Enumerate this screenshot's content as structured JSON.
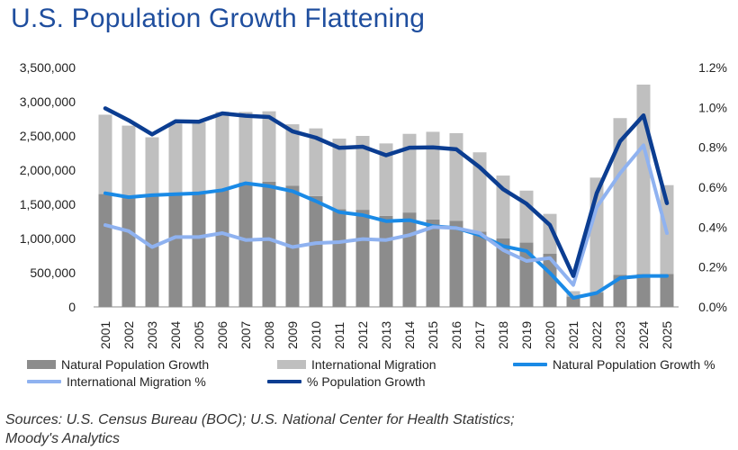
{
  "title": "U.S. Population Growth Flattening",
  "source_lines": [
    "Sources: U.S. Census Bureau (BOC); U.S. National Center for Health Statistics;",
    "Moody's Analytics"
  ],
  "legend": [
    {
      "label": "Natural Population Growth",
      "kind": "box",
      "color": "#8c8c8c"
    },
    {
      "label": "International Migration",
      "kind": "box",
      "color": "#bfbfbf"
    },
    {
      "label": "Natural Population Growth %",
      "kind": "line",
      "color": "#1a8ae6"
    },
    {
      "label": "International Migration %",
      "kind": "line",
      "color": "#8fb2f0"
    },
    {
      "label": "% Population Growth",
      "kind": "line",
      "color": "#0b3d91"
    }
  ],
  "chart_data": {
    "type": "bar",
    "stacked": true,
    "categories": [
      "2001",
      "2002",
      "2003",
      "2004",
      "2005",
      "2006",
      "2007",
      "2008",
      "2009",
      "2010",
      "2011",
      "2012",
      "2013",
      "2014",
      "2015",
      "2016",
      "2017",
      "2018",
      "2019",
      "2020",
      "2021",
      "2022",
      "2023",
      "2024",
      "2025"
    ],
    "left_axis": {
      "min": 0,
      "max": 3500000,
      "step": 500000,
      "tick_labels": [
        "0",
        "500,000",
        "1,000,000",
        "1,500,000",
        "2,000,000",
        "2,500,000",
        "3,000,000",
        "3,500,000"
      ]
    },
    "right_axis": {
      "min": 0,
      "max": 1.2,
      "step": 0.2,
      "tick_labels": [
        "0.0%",
        "0.2%",
        "0.4%",
        "0.6%",
        "0.8%",
        "1.0%",
        "1.2%"
      ]
    },
    "grid": false,
    "legend_position": "bottom",
    "bar_series": [
      {
        "name": "Natural Population Growth",
        "color": "#8c8c8c",
        "values": [
          1650000,
          1600000,
          1620000,
          1640000,
          1650000,
          1720000,
          1820000,
          1830000,
          1770000,
          1620000,
          1430000,
          1420000,
          1330000,
          1380000,
          1280000,
          1260000,
          1100000,
          1000000,
          940000,
          780000,
          150000,
          210000,
          470000,
          480000,
          480000
        ]
      },
      {
        "name": "International Migration",
        "color": "#bfbfbf",
        "values": [
          1160000,
          1050000,
          860000,
          1040000,
          1050000,
          1130000,
          1030000,
          1030000,
          900000,
          990000,
          1030000,
          1080000,
          1060000,
          1150000,
          1280000,
          1280000,
          1160000,
          920000,
          760000,
          580000,
          80000,
          1680000,
          2290000,
          2770000,
          1300000
        ]
      }
    ],
    "line_series": [
      {
        "name": "Natural Population Growth %",
        "color": "#1a8ae6",
        "axis": "right",
        "values": [
          0.57,
          0.55,
          0.56,
          0.565,
          0.57,
          0.585,
          0.62,
          0.605,
          0.58,
          0.53,
          0.475,
          0.46,
          0.43,
          0.435,
          0.405,
          0.395,
          0.36,
          0.305,
          0.28,
          0.17,
          0.045,
          0.07,
          0.145,
          0.155,
          0.155
        ]
      },
      {
        "name": "International Migration %",
        "color": "#8fb2f0",
        "axis": "right",
        "values": [
          0.41,
          0.38,
          0.3,
          0.35,
          0.35,
          0.37,
          0.335,
          0.34,
          0.3,
          0.32,
          0.325,
          0.34,
          0.335,
          0.36,
          0.4,
          0.395,
          0.37,
          0.285,
          0.23,
          0.245,
          0.11,
          0.5,
          0.67,
          0.81,
          0.37
        ]
      },
      {
        "name": "% Population Growth",
        "color": "#0b3d91",
        "axis": "right",
        "values": [
          0.995,
          0.935,
          0.865,
          0.93,
          0.928,
          0.97,
          0.958,
          0.952,
          0.88,
          0.848,
          0.797,
          0.803,
          0.76,
          0.798,
          0.8,
          0.79,
          0.7,
          0.59,
          0.517,
          0.41,
          0.155,
          0.57,
          0.83,
          0.96,
          0.52
        ]
      }
    ]
  }
}
